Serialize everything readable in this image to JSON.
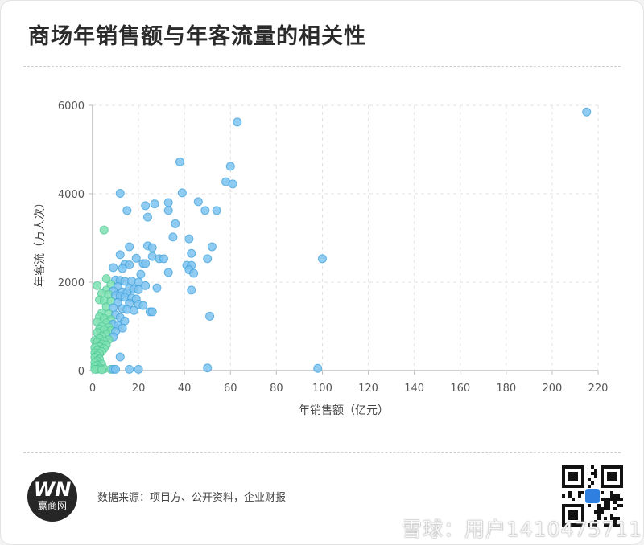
{
  "title": "商场年销售额与年客流量的相关性",
  "footer": {
    "logo_mark": "WN",
    "logo_text": "赢商网",
    "source": "数据来源：项目方、公开资料，企业财报",
    "watermark": "雪球：用户1410475711"
  },
  "colors": {
    "point_blue": "#7cc3ee",
    "point_green": "#7ee0b2",
    "point_stroke": "#3fa0dc"
  },
  "chart_data": {
    "type": "scatter",
    "title": "",
    "xlabel": "年销售额（亿元）",
    "ylabel": "年客流（万人次）",
    "xlim": [
      0,
      220
    ],
    "ylim": [
      0,
      6000
    ],
    "xticks": [
      0,
      20,
      40,
      60,
      80,
      100,
      120,
      140,
      160,
      180,
      200,
      220
    ],
    "yticks": [
      0,
      2000,
      4000,
      6000
    ],
    "grid": true,
    "points": [
      [
        215,
        5850
      ],
      [
        63,
        5620
      ],
      [
        38,
        4720
      ],
      [
        60,
        4620
      ],
      [
        58,
        4270
      ],
      [
        61,
        4220
      ],
      [
        39,
        4020
      ],
      [
        12,
        4010
      ],
      [
        46,
        3820
      ],
      [
        33,
        3800
      ],
      [
        27,
        3770
      ],
      [
        23,
        3730
      ],
      [
        15,
        3620
      ],
      [
        33,
        3620
      ],
      [
        49,
        3620
      ],
      [
        54,
        3620
      ],
      [
        24,
        3470
      ],
      [
        36,
        3320
      ],
      [
        5,
        3180
      ],
      [
        35,
        3020
      ],
      [
        42,
        2980
      ],
      [
        24,
        2820
      ],
      [
        26,
        2780
      ],
      [
        16,
        2800
      ],
      [
        52,
        2800
      ],
      [
        12,
        2620
      ],
      [
        43,
        2650
      ],
      [
        26,
        2580
      ],
      [
        19,
        2540
      ],
      [
        29,
        2530
      ],
      [
        31,
        2530
      ],
      [
        50,
        2530
      ],
      [
        100,
        2530
      ],
      [
        14,
        2400
      ],
      [
        16,
        2390
      ],
      [
        22,
        2420
      ],
      [
        23,
        2420
      ],
      [
        41,
        2380
      ],
      [
        43,
        2380
      ],
      [
        9,
        2330
      ],
      [
        13,
        2310
      ],
      [
        42,
        2280
      ],
      [
        33,
        2220
      ],
      [
        44,
        2200
      ],
      [
        21,
        2180
      ],
      [
        6,
        2080
      ],
      [
        10,
        2050
      ],
      [
        12,
        2040
      ],
      [
        14,
        2020
      ],
      [
        17,
        2030
      ],
      [
        20,
        2000
      ],
      [
        2,
        1920
      ],
      [
        8,
        1950
      ],
      [
        11,
        1900
      ],
      [
        23,
        1920
      ],
      [
        16,
        1860
      ],
      [
        18,
        1840
      ],
      [
        20,
        1830
      ],
      [
        43,
        1820
      ],
      [
        6,
        1820
      ],
      [
        9,
        1800
      ],
      [
        13,
        1780
      ],
      [
        15,
        1760
      ],
      [
        28,
        1870
      ],
      [
        4,
        1740
      ],
      [
        7,
        1720
      ],
      [
        10,
        1700
      ],
      [
        12,
        1680
      ],
      [
        14,
        1660
      ],
      [
        17,
        1640
      ],
      [
        19,
        1620
      ],
      [
        3,
        1600
      ],
      [
        5,
        1580
      ],
      [
        8,
        1560
      ],
      [
        11,
        1540
      ],
      [
        16,
        1520
      ],
      [
        20,
        1500
      ],
      [
        22,
        1470
      ],
      [
        6,
        1440
      ],
      [
        9,
        1420
      ],
      [
        13,
        1400
      ],
      [
        15,
        1380
      ],
      [
        18,
        1360
      ],
      [
        25,
        1330
      ],
      [
        26,
        1330
      ],
      [
        4,
        1300
      ],
      [
        7,
        1280
      ],
      [
        10,
        1260
      ],
      [
        3,
        1220
      ],
      [
        12,
        1200
      ],
      [
        51,
        1230
      ],
      [
        5,
        1180
      ],
      [
        8,
        1150
      ],
      [
        14,
        1120
      ],
      [
        2,
        1100
      ],
      [
        6,
        1080
      ],
      [
        9,
        1050
      ],
      [
        11,
        1020
      ],
      [
        4,
        1000
      ],
      [
        7,
        980
      ],
      [
        13,
        960
      ],
      [
        3,
        940
      ],
      [
        5,
        920
      ],
      [
        8,
        900
      ],
      [
        10,
        880
      ],
      [
        2,
        860
      ],
      [
        6,
        820
      ],
      [
        4,
        780
      ],
      [
        9,
        760
      ],
      [
        3,
        720
      ],
      [
        7,
        700
      ],
      [
        1,
        680
      ],
      [
        5,
        660
      ],
      [
        2,
        640
      ],
      [
        4,
        600
      ],
      [
        6,
        580
      ],
      [
        3,
        540
      ],
      [
        1,
        520
      ],
      [
        5,
        500
      ],
      [
        2,
        460
      ],
      [
        4,
        430
      ],
      [
        1,
        400
      ],
      [
        3,
        380
      ],
      [
        2,
        340
      ],
      [
        1,
        300
      ],
      [
        12,
        310
      ],
      [
        3,
        260
      ],
      [
        2,
        220
      ],
      [
        1,
        180
      ],
      [
        4,
        150
      ],
      [
        2,
        120
      ],
      [
        1,
        90
      ],
      [
        3,
        60
      ],
      [
        5,
        40
      ],
      [
        8,
        30
      ],
      [
        9,
        30
      ],
      [
        10,
        30
      ],
      [
        16,
        30
      ],
      [
        20,
        30
      ],
      [
        2,
        30
      ],
      [
        1,
        30
      ],
      [
        50,
        60
      ],
      [
        98,
        50
      ],
      [
        4,
        20
      ]
    ]
  }
}
